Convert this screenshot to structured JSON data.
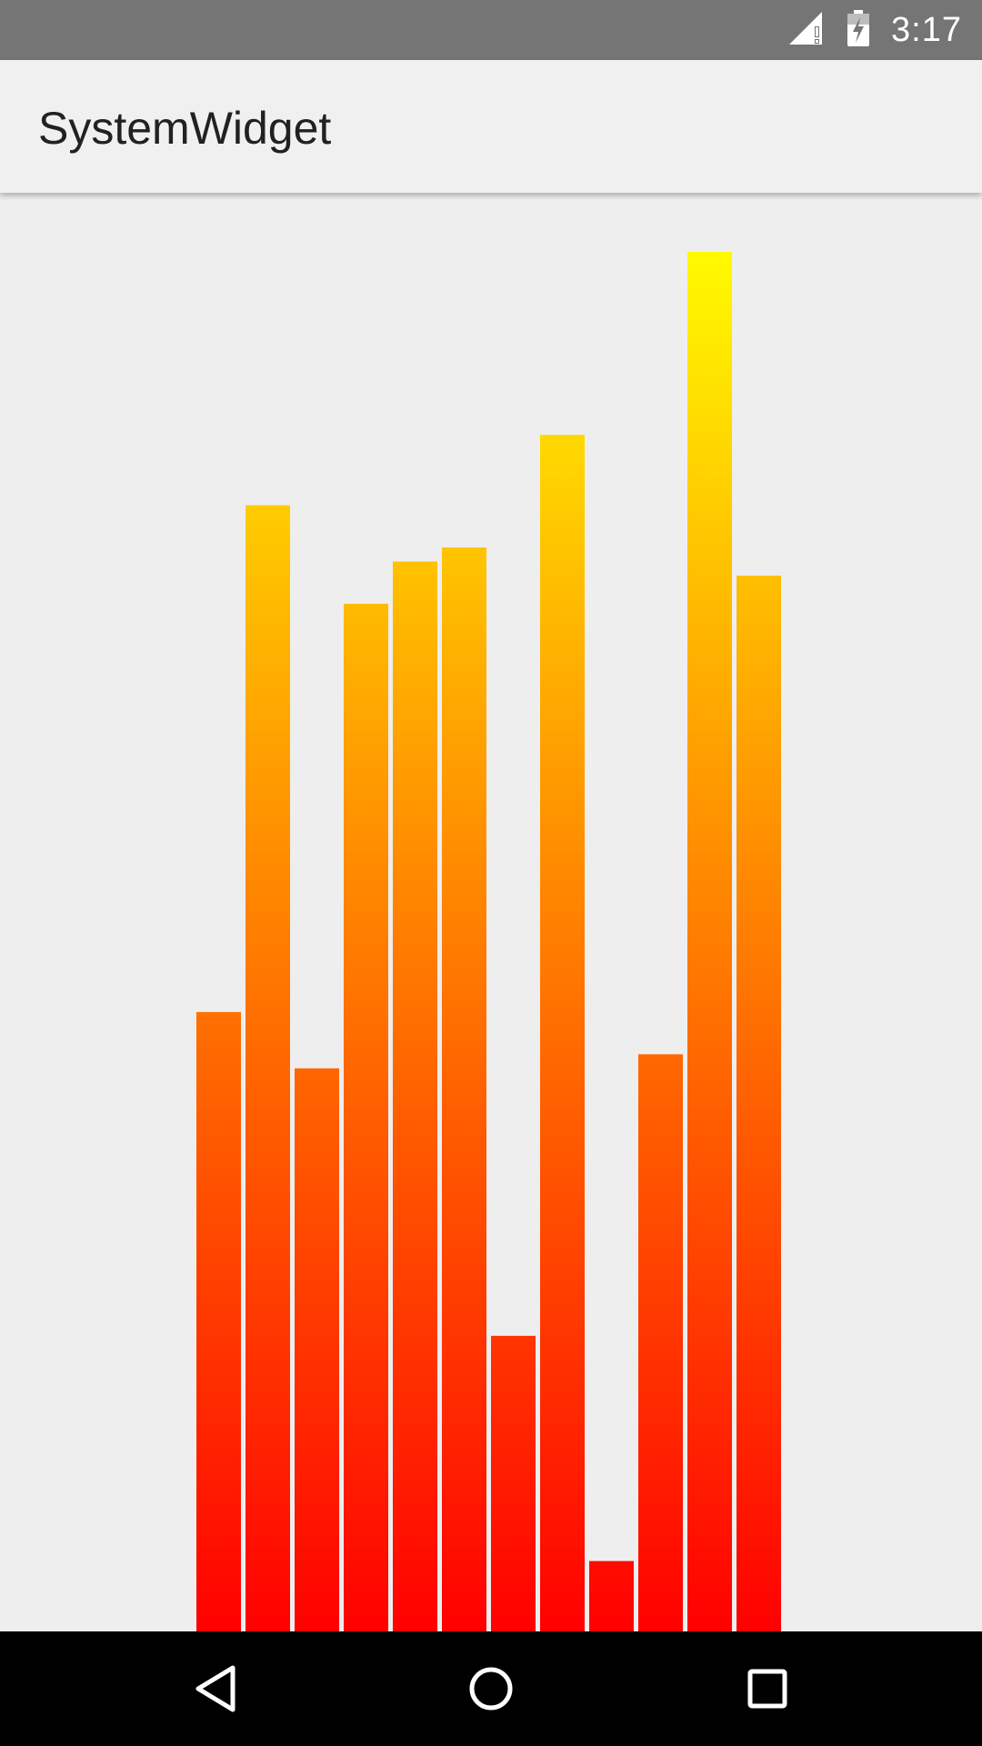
{
  "status_bar": {
    "time": "3:17",
    "icons": [
      "signal-icon",
      "battery-charging-icon"
    ]
  },
  "app_bar": {
    "title": "SystemWidget"
  },
  "chart_data": {
    "type": "bar",
    "values": [
      44,
      80,
      40,
      73,
      76,
      77,
      21,
      85,
      5,
      41,
      98,
      75
    ],
    "ylim": [
      0,
      100
    ],
    "gradient": {
      "bottom": "#ff0000",
      "top": "#ffff00"
    }
  },
  "nav_bar": {
    "icons": [
      "back-icon",
      "home-icon",
      "recents-icon"
    ]
  }
}
